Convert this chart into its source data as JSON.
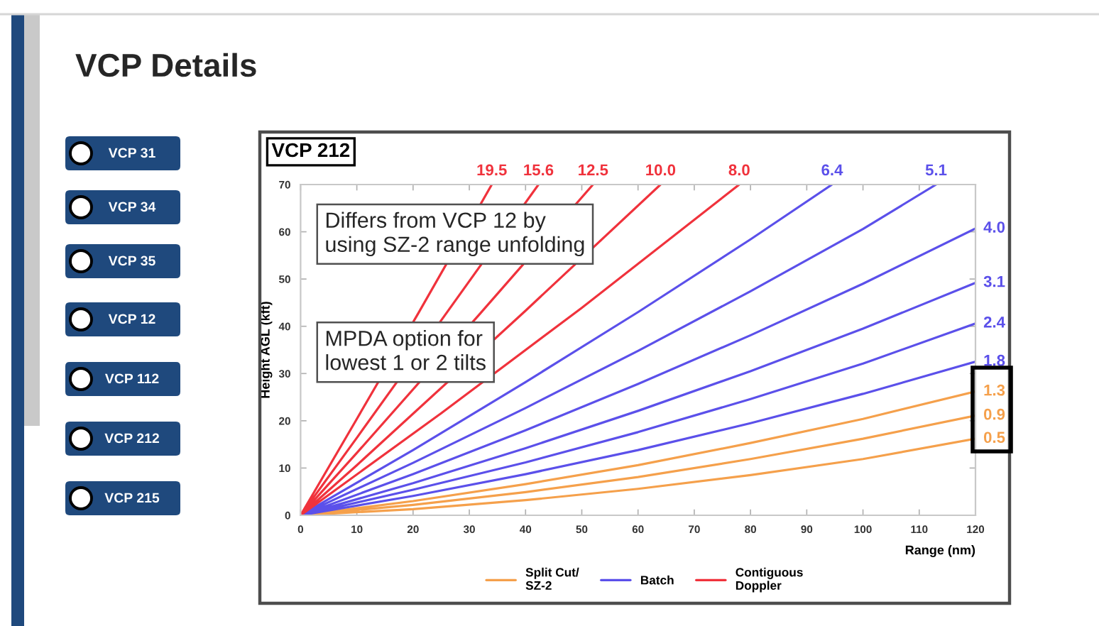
{
  "chart_data": [
    {
      "type": "other",
      "title": "VCP Details",
      "annotations": [
        "VCP 31",
        "VCP 34",
        "VCP 35",
        "VCP 12",
        "VCP 112",
        "VCP 212",
        "VCP 215"
      ]
    },
    {
      "type": "line",
      "title": "VCP 212",
      "xlabel": "Range (nm)",
      "ylabel": "Height AGL (kft)",
      "xlim": [
        0,
        120
      ],
      "ylim": [
        0,
        70
      ],
      "xticks": [
        0,
        10,
        20,
        30,
        40,
        50,
        60,
        70,
        80,
        90,
        100,
        110,
        120
      ],
      "yticks": [
        0,
        10,
        20,
        30,
        40,
        50,
        60,
        70
      ],
      "legend": "bottom",
      "series": [
        {
          "name": "Split Cut/\nSZ-2",
          "color": "#f5a04b",
          "x": [
            0,
            20,
            40,
            60,
            80,
            100,
            120,
            null,
            0,
            20,
            40,
            60,
            80,
            100,
            120,
            null,
            0,
            20,
            40,
            60,
            80,
            100,
            120
          ],
          "values": [
            0,
            1.3,
            3.2,
            5.6,
            8.5,
            11.9,
            16.2,
            null,
            0,
            2.2,
            4.9,
            8.1,
            11.9,
            16.2,
            21.1,
            null,
            0,
            3.0,
            6.6,
            10.6,
            15.3,
            20.4,
            26.2
          ]
        },
        {
          "name": "Batch",
          "color": "#5b50ea",
          "x": [
            0,
            20,
            40,
            60,
            80,
            100,
            120,
            null,
            0,
            20,
            40,
            60,
            80,
            100,
            120,
            null,
            0,
            20,
            40,
            60,
            80,
            100,
            120,
            null,
            0,
            20,
            40,
            60,
            80,
            100,
            120,
            null,
            0,
            20,
            40,
            60,
            80,
            100,
            113,
            null,
            0,
            20,
            40,
            60,
            80,
            94.5
          ],
          "values": [
            0,
            4.1,
            8.7,
            13.8,
            19.5,
            25.7,
            32.5,
            null,
            0,
            5.4,
            11.2,
            17.6,
            24.6,
            32.1,
            40.6,
            null,
            0,
            6.8,
            14.2,
            22.1,
            30.5,
            39.5,
            49.2,
            null,
            0,
            8.7,
            18.0,
            27.8,
            38.1,
            49.0,
            60.7,
            null,
            0,
            11.1,
            22.7,
            34.8,
            47.4,
            60.6,
            70,
            null,
            0,
            13.8,
            28.2,
            43.0,
            58.4,
            70
          ]
        },
        {
          "name": "Contiguous\nDoppler",
          "color": "#f0323c",
          "x": [
            0,
            25,
            50,
            78,
            null,
            0,
            10,
            40,
            64,
            null,
            0,
            10,
            32,
            52,
            null,
            0,
            10,
            26,
            42.3,
            null,
            0,
            10,
            21,
            34
          ],
          "values": [
            0,
            21.6,
            43.9,
            70,
            null,
            0,
            10.6,
            43.3,
            70,
            null,
            0,
            13.2,
            42.8,
            70,
            null,
            0,
            16.4,
            42.9,
            70,
            null,
            0,
            20.4,
            42.9,
            70
          ]
        }
      ],
      "annotations": [
        "Differs from VCP 12 by\nusing SZ-2 range unfolding",
        "MPDA option for\nlowest 1 or 2 tilts",
        {
          "text": "19.5",
          "x": 34,
          "y": 70
        },
        {
          "text": "15.6",
          "x": 42.3,
          "y": 70
        },
        {
          "text": "12.5",
          "x": 52,
          "y": 70
        },
        {
          "text": "10.0",
          "x": 64,
          "y": 70
        },
        {
          "text": "8.0",
          "x": 78,
          "y": 70
        },
        {
          "text": "6.4",
          "x": 94.5,
          "y": 70
        },
        {
          "text": "5.1",
          "x": 113,
          "y": 70
        },
        {
          "text": "4.0",
          "x": 120,
          "y": 60.7
        },
        {
          "text": "3.1",
          "x": 120,
          "y": 49.2
        },
        {
          "text": "2.4",
          "x": 120,
          "y": 40.6
        },
        {
          "text": "1.8",
          "x": 120,
          "y": 32.5
        },
        {
          "text": "1.3",
          "x": 120,
          "y": 26.2
        },
        {
          "text": "0.9",
          "x": 120,
          "y": 21.1
        },
        {
          "text": "0.5",
          "x": 120,
          "y": 16.2
        }
      ]
    }
  ]
}
